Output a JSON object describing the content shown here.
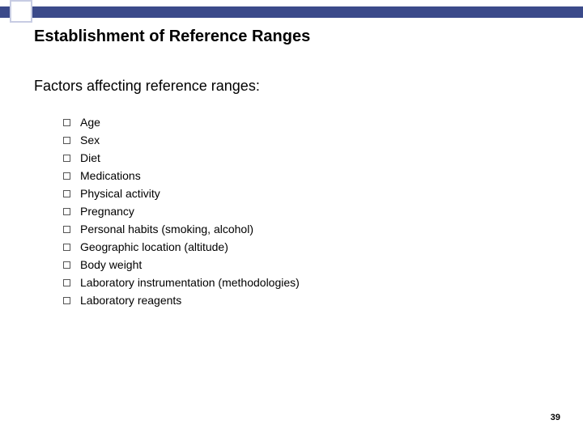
{
  "title": "Establishment of Reference Ranges",
  "subtitle": "Factors affecting reference ranges:",
  "items": [
    "Age",
    "Sex",
    "Diet",
    "Medications",
    "Physical activity",
    "Pregnancy",
    "Personal habits (smoking, alcohol)",
    "Geographic location (altitude)",
    "Body weight",
    "Laboratory instrumentation (methodologies)",
    "Laboratory reagents"
  ],
  "page_number": "39",
  "colors": {
    "bar": "#3b4a8a",
    "square_border": "#c7cce3",
    "background": "#ffffff",
    "text": "#000000"
  }
}
